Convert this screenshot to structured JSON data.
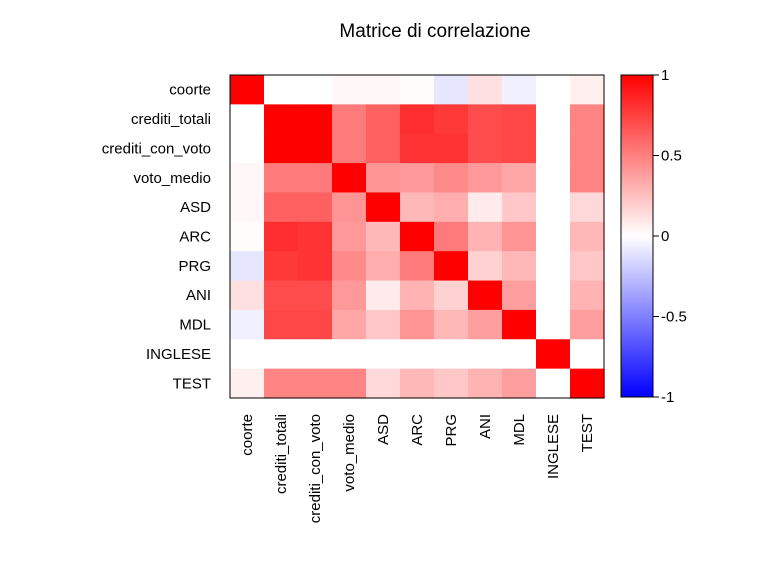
{
  "chart_data": {
    "type": "heatmap",
    "title": "Matrice di correlazione",
    "variables": [
      "coorte",
      "crediti_totali",
      "crediti_con_voto",
      "voto_medio",
      "ASD",
      "ARC",
      "PRG",
      "ANI",
      "MDL",
      "INGLESE",
      "TEST"
    ],
    "matrix": [
      [
        1.0,
        0.0,
        0.0,
        0.03,
        0.03,
        0.01,
        -0.1,
        0.12,
        -0.06,
        null,
        0.06
      ],
      [
        0.0,
        1.0,
        1.0,
        0.52,
        0.62,
        0.82,
        0.78,
        0.7,
        0.72,
        null,
        0.48
      ],
      [
        0.0,
        1.0,
        1.0,
        0.52,
        0.62,
        0.8,
        0.8,
        0.7,
        0.72,
        null,
        0.48
      ],
      [
        0.03,
        0.52,
        0.52,
        1.0,
        0.42,
        0.4,
        0.46,
        0.4,
        0.35,
        null,
        0.48
      ],
      [
        0.03,
        0.62,
        0.62,
        0.42,
        1.0,
        0.28,
        0.32,
        0.08,
        0.22,
        null,
        0.15
      ],
      [
        0.01,
        0.82,
        0.8,
        0.4,
        0.28,
        1.0,
        0.52,
        0.3,
        0.42,
        null,
        0.28
      ],
      [
        -0.1,
        0.78,
        0.8,
        0.46,
        0.32,
        0.52,
        1.0,
        0.18,
        0.28,
        null,
        0.22
      ],
      [
        0.12,
        0.7,
        0.7,
        0.4,
        0.08,
        0.3,
        0.18,
        1.0,
        0.38,
        null,
        0.3
      ],
      [
        -0.06,
        0.72,
        0.72,
        0.35,
        0.22,
        0.42,
        0.28,
        0.38,
        1.0,
        null,
        0.38
      ],
      [
        null,
        null,
        null,
        null,
        null,
        null,
        null,
        null,
        null,
        1.0,
        null
      ],
      [
        0.06,
        0.48,
        0.48,
        0.48,
        0.15,
        0.28,
        0.22,
        0.3,
        0.38,
        null,
        1.0
      ]
    ],
    "colorbar": {
      "ticks": [
        "1",
        "0.5",
        "0",
        "-0.5",
        "-1"
      ],
      "range": [
        -1,
        1
      ]
    },
    "colors": {
      "low": "#0000ff",
      "mid": "#ffffff",
      "high": "#ff0000"
    },
    "legend": "right"
  }
}
